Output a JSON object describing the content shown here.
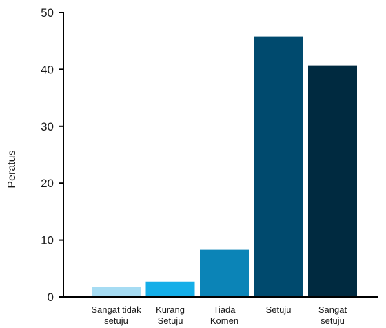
{
  "chart_data": {
    "type": "bar",
    "title": "",
    "xlabel": "",
    "ylabel": "Peratus",
    "ylim": [
      0,
      50
    ],
    "yticks": [
      0,
      10,
      20,
      30,
      40,
      50
    ],
    "grid": false,
    "legend": "none",
    "categories": [
      [
        "Sangat tidak",
        "setuju"
      ],
      [
        "Kurang",
        "Setuju"
      ],
      [
        "Tiada",
        "Komen"
      ],
      [
        "Setuju"
      ],
      [
        "Sangat",
        "setuju"
      ]
    ],
    "values": [
      1.8,
      2.7,
      8.3,
      45.8,
      40.7
    ],
    "colors": [
      "#a6dcf3",
      "#14aee8",
      "#0b84b7",
      "#004a6e",
      "#002a40"
    ]
  }
}
